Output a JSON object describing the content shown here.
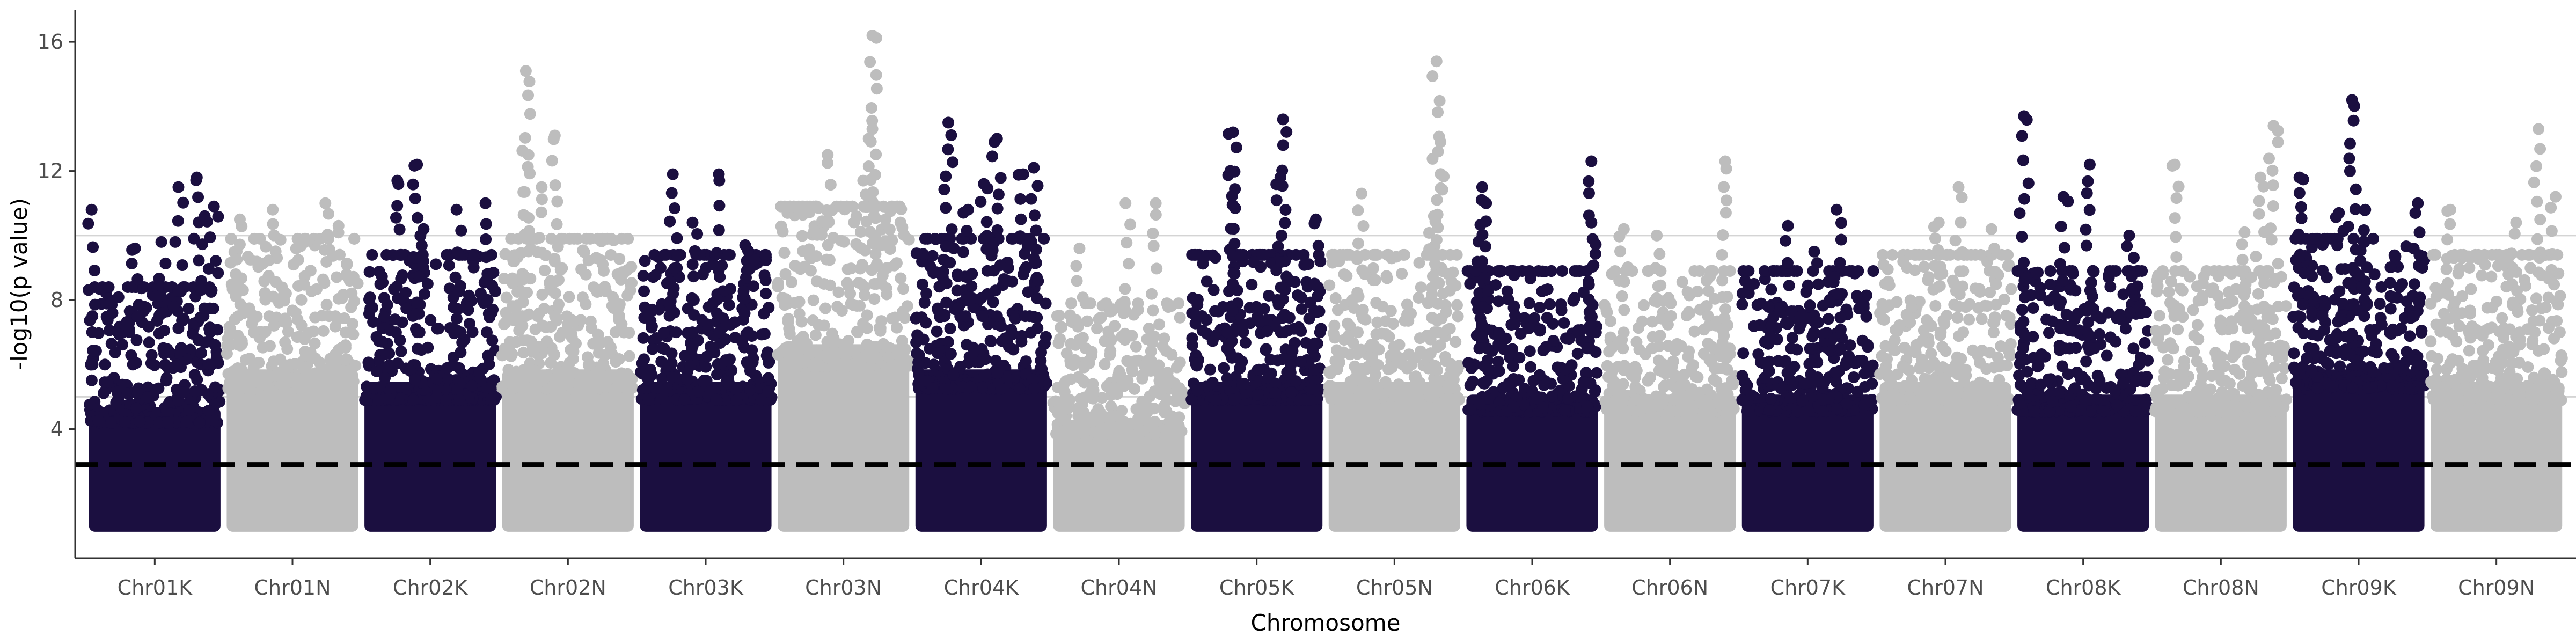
{
  "chart_data": {
    "type": "scatter",
    "subtype": "manhattan",
    "title": "",
    "xlabel": "Chromosome",
    "ylabel": "-log10(p value)",
    "ylim": [
      0,
      17
    ],
    "yticks": [
      4,
      8,
      12,
      16
    ],
    "grid": "horizontal reference lines at 5 and 10",
    "threshold_line": {
      "y": 2.9,
      "style": "dashed",
      "color": "#000000"
    },
    "reference_lines": [
      5,
      10
    ],
    "colors": {
      "dark": "#1b0f40",
      "light": "#bdbdbd",
      "reference": "#d4d4d4"
    },
    "legend": "none",
    "categories": [
      "Chr01K",
      "Chr01N",
      "Chr02K",
      "Chr02N",
      "Chr03K",
      "Chr03N",
      "Chr04K",
      "Chr04N",
      "Chr05K",
      "Chr05N",
      "Chr06K",
      "Chr06N",
      "Chr07K",
      "Chr07N",
      "Chr08K",
      "Chr08N",
      "Chr09K",
      "Chr09N"
    ],
    "series": [
      {
        "category": "Chr01K",
        "color": "dark",
        "min": 1.0,
        "dense_max": 6.0,
        "peaks": [
          [
            0.02,
            10.8
          ],
          [
            0.15,
            8.4
          ],
          [
            0.35,
            9.6
          ],
          [
            0.55,
            9.8
          ],
          [
            0.68,
            11.5
          ],
          [
            0.82,
            11.8
          ],
          [
            0.88,
            10.6
          ],
          [
            0.95,
            10.9
          ]
        ]
      },
      {
        "category": "Chr01N",
        "color": "light",
        "min": 1.0,
        "dense_max": 7.5,
        "peaks": [
          [
            0.1,
            10.5
          ],
          [
            0.35,
            10.8
          ],
          [
            0.75,
            11.0
          ],
          [
            0.85,
            10.3
          ]
        ]
      },
      {
        "category": "Chr02K",
        "color": "dark",
        "min": 1.0,
        "dense_max": 7.0,
        "peaks": [
          [
            0.25,
            11.7
          ],
          [
            0.4,
            12.2
          ],
          [
            0.45,
            10.2
          ],
          [
            0.7,
            10.8
          ],
          [
            0.92,
            11.0
          ]
        ]
      },
      {
        "category": "Chr02N",
        "color": "light",
        "min": 1.0,
        "dense_max": 7.5,
        "peaks": [
          [
            0.18,
            15.1
          ],
          [
            0.4,
            13.1
          ],
          [
            0.2,
            12.5
          ],
          [
            0.3,
            11.5
          ]
        ]
      },
      {
        "category": "Chr03K",
        "color": "dark",
        "min": 1.0,
        "dense_max": 7.0,
        "peaks": [
          [
            0.25,
            11.9
          ],
          [
            0.6,
            11.9
          ],
          [
            0.4,
            10.4
          ],
          [
            0.8,
            9.7
          ]
        ]
      },
      {
        "category": "Chr03N",
        "color": "light",
        "min": 1.0,
        "dense_max": 8.5,
        "peaks": [
          [
            0.72,
            16.2
          ],
          [
            0.72,
            13.3
          ],
          [
            0.38,
            12.5
          ],
          [
            0.65,
            11.7
          ],
          [
            0.82,
            10.5
          ]
        ]
      },
      {
        "category": "Chr04K",
        "color": "dark",
        "min": 1.0,
        "dense_max": 7.5,
        "peaks": [
          [
            0.25,
            13.5
          ],
          [
            0.62,
            13.0
          ],
          [
            0.9,
            12.1
          ],
          [
            0.82,
            11.9
          ],
          [
            0.52,
            11.6
          ],
          [
            0.4,
            10.8
          ]
        ]
      },
      {
        "category": "Chr04N",
        "color": "light",
        "min": 1.0,
        "dense_max": 5.5,
        "peaks": [
          [
            0.2,
            9.6
          ],
          [
            0.55,
            11.0
          ],
          [
            0.78,
            11.0
          ]
        ]
      },
      {
        "category": "Chr05K",
        "color": "dark",
        "min": 1.0,
        "dense_max": 7.0,
        "peaks": [
          [
            0.32,
            13.2
          ],
          [
            0.7,
            13.6
          ],
          [
            0.3,
            12.0
          ],
          [
            0.68,
            11.8
          ],
          [
            0.95,
            10.5
          ]
        ]
      },
      {
        "category": "Chr05N",
        "color": "light",
        "min": 1.0,
        "dense_max": 7.0,
        "peaks": [
          [
            0.82,
            15.4
          ],
          [
            0.85,
            12.9
          ],
          [
            0.25,
            11.3
          ],
          [
            0.8,
            10.6
          ]
        ]
      },
      {
        "category": "Chr06K",
        "color": "dark",
        "min": 1.0,
        "dense_max": 6.5,
        "peaks": [
          [
            0.12,
            11.5
          ],
          [
            0.15,
            11.0
          ],
          [
            0.95,
            12.3
          ],
          [
            0.95,
            10.4
          ]
        ]
      },
      {
        "category": "Chr06N",
        "color": "light",
        "min": 1.0,
        "dense_max": 6.5,
        "peaks": [
          [
            0.15,
            10.2
          ],
          [
            0.4,
            10.0
          ],
          [
            0.92,
            12.3
          ]
        ]
      },
      {
        "category": "Chr07K",
        "color": "dark",
        "min": 1.0,
        "dense_max": 6.5,
        "peaks": [
          [
            0.35,
            10.3
          ],
          [
            0.72,
            10.8
          ],
          [
            0.55,
            9.5
          ]
        ]
      },
      {
        "category": "Chr07N",
        "color": "light",
        "min": 1.0,
        "dense_max": 7.0,
        "peaks": [
          [
            0.6,
            11.5
          ],
          [
            0.45,
            10.4
          ],
          [
            0.85,
            10.2
          ]
        ]
      },
      {
        "category": "Chr08K",
        "color": "dark",
        "min": 1.0,
        "dense_max": 6.5,
        "peaks": [
          [
            0.05,
            13.7
          ],
          [
            0.55,
            12.2
          ],
          [
            0.35,
            11.2
          ],
          [
            0.85,
            10.0
          ]
        ]
      },
      {
        "category": "Chr08N",
        "color": "light",
        "min": 1.0,
        "dense_max": 6.5,
        "peaks": [
          [
            0.15,
            12.2
          ],
          [
            0.9,
            13.4
          ],
          [
            0.8,
            11.8
          ],
          [
            0.68,
            10.1
          ]
        ]
      },
      {
        "category": "Chr09K",
        "color": "dark",
        "min": 1.0,
        "dense_max": 7.5,
        "peaks": [
          [
            0.45,
            14.2
          ],
          [
            0.05,
            11.8
          ],
          [
            0.35,
            10.7
          ],
          [
            0.55,
            10.8
          ],
          [
            0.95,
            11.0
          ]
        ]
      },
      {
        "category": "Chr09N",
        "color": "light",
        "min": 1.0,
        "dense_max": 7.0,
        "peaks": [
          [
            0.82,
            13.3
          ],
          [
            0.15,
            10.8
          ],
          [
            0.95,
            11.2
          ],
          [
            0.65,
            10.4
          ]
        ]
      }
    ]
  }
}
